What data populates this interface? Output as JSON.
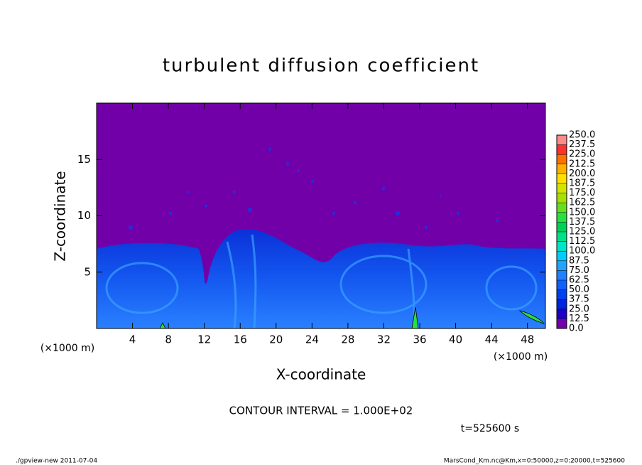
{
  "chart_data": {
    "type": "contour",
    "title": "turbulent diffusion coefficient",
    "xlabel": "X-coordinate",
    "ylabel": "Z-coordinate",
    "x_unit": "(×1000 m)",
    "y_unit": "(×1000 m)",
    "xlim": [
      0,
      50
    ],
    "xticks": [
      4,
      8,
      12,
      16,
      20,
      24,
      28,
      32,
      36,
      40,
      44,
      48
    ],
    "ylim": [
      0,
      20
    ],
    "yticks": [
      5,
      10,
      15
    ],
    "colorbar": {
      "levels": [
        {
          "value": 0,
          "label": "0.0"
        },
        {
          "value": 12.5,
          "label": "12.5"
        },
        {
          "value": 25,
          "label": "25.0"
        },
        {
          "value": 37.5,
          "label": "37.5"
        },
        {
          "value": 50,
          "label": "50.0"
        },
        {
          "value": 62.5,
          "label": "62.5"
        },
        {
          "value": 75,
          "label": "75.0"
        },
        {
          "value": 87.5,
          "label": "87.5"
        },
        {
          "value": 100,
          "label": "100.0"
        },
        {
          "value": 112.5,
          "label": "112.5"
        },
        {
          "value": 125,
          "label": "125.0"
        },
        {
          "value": 137.5,
          "label": "137.5"
        },
        {
          "value": 150,
          "label": "150.0"
        },
        {
          "value": 162.5,
          "label": "162.5"
        },
        {
          "value": 175,
          "label": "175.0"
        },
        {
          "value": 187.5,
          "label": "187.5"
        },
        {
          "value": 200,
          "label": "200.0"
        },
        {
          "value": 212.5,
          "label": "212.5"
        },
        {
          "value": 225,
          "label": "225.0"
        },
        {
          "value": 237.5,
          "label": "237.5"
        },
        {
          "value": 250,
          "label": "250.0"
        }
      ],
      "colors": [
        "#7200a8",
        "#1e00c8",
        "#0024e0",
        "#0040f0",
        "#1060ff",
        "#2080ff",
        "#20a4ff",
        "#00ccff",
        "#00e4c8",
        "#00e088",
        "#00d054",
        "#28e040",
        "#64e020",
        "#a4e000",
        "#d4e400",
        "#ffe000",
        "#ffb000",
        "#ff7000",
        "#ff3030",
        "#ff8a8a"
      ]
    },
    "contour_interval": "CONTOUR INTERVAL = 1.000E+02",
    "time_label": "t=525600 s",
    "footer_left": "./gpview-new  2011-07-04",
    "footer_right": "MarsCond_Km.nc@Km,x=0:50000,z=0:20000,t=525600"
  }
}
